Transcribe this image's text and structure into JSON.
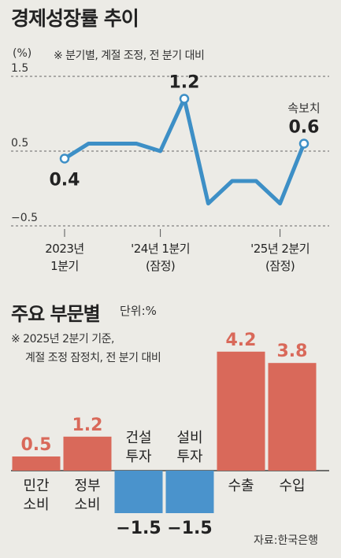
{
  "title_line": "경제성장률 추이",
  "unit_line": "(%)",
  "note_line": "※ 분기별, 계절 조정, 전 분기 대비",
  "title_bar": "주요 부문별",
  "unit_bar": "단위:%",
  "note_bar_1": "※ 2025년 2분기 기준,",
  "note_bar_2": "계절 조정 잠정치, 전 분기 대비",
  "source": "자료:한국은행",
  "colors": {
    "line": "#3d8fc6",
    "positive": "#d9695a",
    "negative": "#4a93cc",
    "positive_label": "#d9695a",
    "text": "#222222"
  },
  "chart_data": [
    {
      "type": "line",
      "title": "경제성장률 추이",
      "ylabel": "(%)",
      "ylim": [
        -0.5,
        1.5
      ],
      "yticks": [
        1.5,
        0.5,
        -0.5
      ],
      "ytick_labels": [
        "1.5",
        "0.5",
        "−0.5"
      ],
      "x_tick_labels": [
        {
          "index": 0,
          "lines": [
            "2023년",
            "1분기"
          ]
        },
        {
          "index": 4,
          "lines": [
            "'24년 1분기",
            "(잠정)"
          ]
        },
        {
          "index": 9,
          "lines": [
            "'25년 2분기",
            "(잠정)"
          ]
        }
      ],
      "series": [
        {
          "values": [
            0.4,
            0.6,
            0.6,
            0.6,
            0.5,
            1.2,
            -0.2,
            0.1,
            0.1,
            -0.2,
            0.6
          ]
        }
      ],
      "annotations": [
        {
          "index": 0,
          "label": "0.4"
        },
        {
          "index": 5,
          "label": "1.2"
        },
        {
          "index": 10,
          "label": "0.6",
          "caption": "속보치"
        }
      ]
    },
    {
      "type": "bar",
      "title": "주요 부문별",
      "unit": "단위:%",
      "categories": [
        {
          "lines": [
            "민간",
            "소비"
          ]
        },
        {
          "lines": [
            "정부",
            "소비"
          ]
        },
        {
          "lines": [
            "건설",
            "투자"
          ]
        },
        {
          "lines": [
            "설비",
            "투자"
          ]
        },
        {
          "lines": [
            "수출"
          ]
        },
        {
          "lines": [
            "수입"
          ]
        }
      ],
      "values": [
        0.5,
        1.2,
        -1.5,
        -1.5,
        4.2,
        3.8
      ],
      "value_labels": [
        "0.5",
        "1.2",
        "−1.5",
        "−1.5",
        "4.2",
        "3.8"
      ]
    }
  ]
}
